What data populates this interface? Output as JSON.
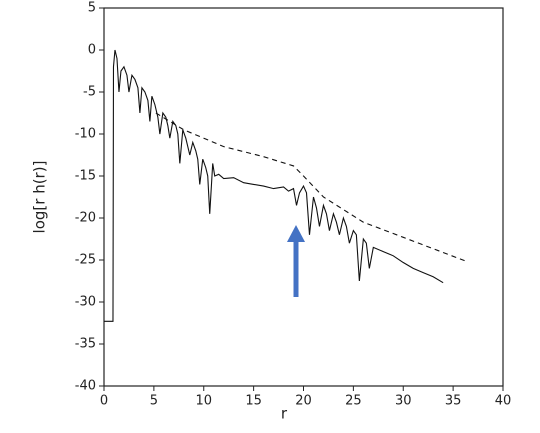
{
  "chart_data": {
    "type": "line",
    "x_label": "r",
    "y_label": "log[r h(r)]",
    "xlim": [
      0,
      40
    ],
    "ylim": [
      -40,
      5
    ],
    "xticks": [
      0,
      5,
      10,
      15,
      20,
      25,
      30,
      35,
      40
    ],
    "yticks": [
      5,
      0,
      -5,
      -10,
      -15,
      -20,
      -25,
      -30,
      -35,
      -40
    ],
    "series": [
      {
        "color": "#111111",
        "dashed": false,
        "x": [
          0,
          0.9,
          0.95,
          1.1,
          1.3,
          1.5,
          1.7,
          2.0,
          2.3,
          2.5,
          2.8,
          3.1,
          3.4,
          3.6,
          3.8,
          4.1,
          4.4,
          4.6,
          4.8,
          5.1,
          5.4,
          5.6,
          5.9,
          6.2,
          6.4,
          6.6,
          6.9,
          7.2,
          7.4,
          7.6,
          7.9,
          8.2,
          8.4,
          8.6,
          8.9,
          9.2,
          9.4,
          9.6,
          9.9,
          10.2,
          10.4,
          10.6,
          10.9,
          11.1,
          11.5,
          12,
          13,
          14,
          15,
          16,
          17,
          18,
          18.5,
          19,
          19.3,
          19.6,
          20,
          20.3,
          20.6,
          21,
          21.3,
          21.6,
          22,
          22.3,
          22.6,
          23,
          23.3,
          23.6,
          24,
          24.3,
          24.6,
          25,
          25.3,
          25.6,
          26,
          26.3,
          26.6,
          27,
          28,
          29,
          30,
          31,
          32,
          33,
          34
        ],
        "values": [
          -32.3,
          -32.3,
          -2,
          0,
          -1,
          -5,
          -2.5,
          -2,
          -3,
          -5,
          -3,
          -3.5,
          -4.5,
          -7.5,
          -4.5,
          -5,
          -6,
          -8.5,
          -5.5,
          -6.5,
          -8,
          -10,
          -7.5,
          -8,
          -9,
          -10.5,
          -8.5,
          -9,
          -10,
          -13.5,
          -9.5,
          -10.5,
          -11.5,
          -12.5,
          -11,
          -12,
          -13,
          -16,
          -13,
          -14,
          -15,
          -19.5,
          -13.5,
          -15,
          -14.8,
          -15.3,
          -15.2,
          -15.8,
          -16,
          -16.2,
          -16.5,
          -16.3,
          -16.8,
          -16.5,
          -18.5,
          -17,
          -16.2,
          -17,
          -22,
          -17.5,
          -18.8,
          -21,
          -18.5,
          -19.5,
          -21.5,
          -19.5,
          -20.5,
          -22,
          -20,
          -21,
          -23,
          -21.5,
          -22,
          -27.5,
          -22.5,
          -23,
          -26,
          -23.5,
          -24,
          -24.5,
          -25.3,
          -26,
          -26.5,
          -27,
          -27.7
        ]
      },
      {
        "color": "#111111",
        "dashed": true,
        "x": [
          5.2,
          8,
          12,
          16,
          19,
          20,
          22,
          26,
          30,
          36.2
        ],
        "values": [
          -7.5,
          -9.5,
          -11.5,
          -12.7,
          -13.8,
          -15,
          -17.5,
          -20.5,
          -22.3,
          -25.1
        ]
      }
    ]
  }
}
